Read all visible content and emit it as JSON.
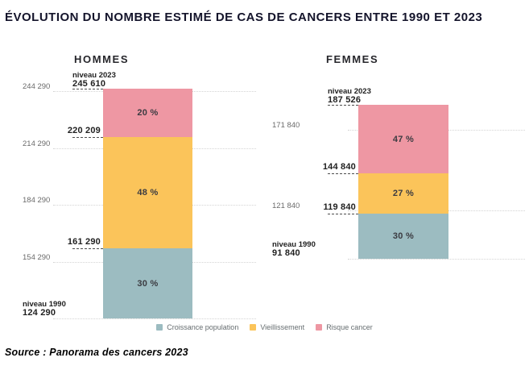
{
  "title": "ÉVOLUTION DU NOMBRE ESTIMÉ DE CAS DE CANCERS ENTRE 1990 ET 2023",
  "source": "Source : Panorama des cancers 2023",
  "colors": {
    "croissance": "#9cbcc1",
    "vieillissement": "#fbc45a",
    "risque": "#ee97a3",
    "title_text": "#14142b",
    "bold_label_text": "#1f1f1f",
    "axis_label_text": "#6b6b6b",
    "gridline": "#d4d4d4"
  },
  "legend": [
    {
      "label": "Croissance population",
      "color": "croissance"
    },
    {
      "label": "Vieillissement",
      "color": "vieillissement"
    },
    {
      "label": "Risque cancer",
      "color": "risque"
    }
  ],
  "chart_data": {
    "type": "bar",
    "stacked": true,
    "title": "ÉVOLUTION DU NOMBRE ESTIMÉ DE CAS DE CANCERS ENTRE 1990 ET 2023",
    "legend_position": "bottom",
    "grid": true,
    "charts": [
      {
        "group_label": "HOMMES",
        "ylim": [
          124290,
          245610
        ],
        "base": {
          "caption": "niveau 1990",
          "label": "124 290",
          "value": 124290
        },
        "top": {
          "caption": "niveau 2023",
          "label": "245 610",
          "value": 245610
        },
        "axis_ticks": [
          {
            "label": "244 290",
            "value": 244290
          },
          {
            "label": "214 290",
            "value": 214290
          },
          {
            "label": "184 290",
            "value": 184290
          },
          {
            "label": "154 290",
            "value": 154290
          }
        ],
        "segments": [
          {
            "name": "Croissance population",
            "color": "croissance",
            "pct_label": "30 %",
            "from": 124290,
            "to": 161290
          },
          {
            "name": "Vieillissement",
            "color": "vieillissement",
            "pct_label": "48 %",
            "from": 161290,
            "to": 220209
          },
          {
            "name": "Risque cancer",
            "color": "risque",
            "pct_label": "20 %",
            "from": 220209,
            "to": 245610
          }
        ],
        "boundary_labels": [
          {
            "label": "220 209",
            "value": 220209
          },
          {
            "label": "161 290",
            "value": 161290
          }
        ]
      },
      {
        "group_label": "FEMMES",
        "ylim": [
          91840,
          187526
        ],
        "base": {
          "caption": "niveau 1990",
          "label": "91 840",
          "value": 91840
        },
        "top": {
          "caption": "niveau 2023",
          "label": "187 526",
          "value": 187526
        },
        "axis_ticks": [
          {
            "label": "171 840",
            "value": 171840
          },
          {
            "label": "121 840",
            "value": 121840
          }
        ],
        "segments": [
          {
            "name": "Croissance population",
            "color": "croissance",
            "pct_label": "30 %",
            "from": 91840,
            "to": 119840
          },
          {
            "name": "Vieillissement",
            "color": "vieillissement",
            "pct_label": "27 %",
            "from": 119840,
            "to": 144840
          },
          {
            "name": "Risque cancer",
            "color": "risque",
            "pct_label": "47 %",
            "from": 144840,
            "to": 187526
          }
        ],
        "boundary_labels": [
          {
            "label": "144 840",
            "value": 144840
          },
          {
            "label": "119 840",
            "value": 119840
          }
        ]
      }
    ]
  }
}
